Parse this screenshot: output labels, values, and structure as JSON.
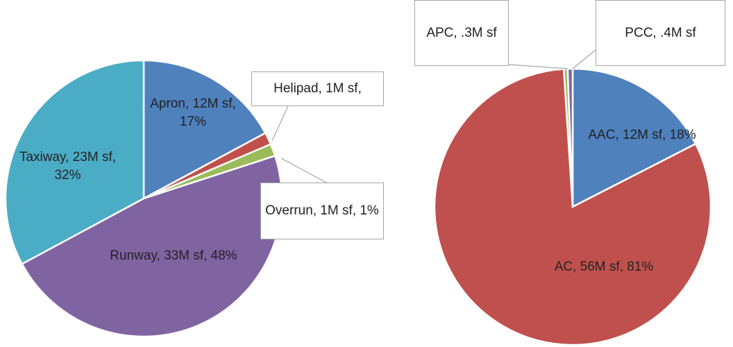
{
  "chart_data": [
    {
      "type": "pie",
      "categories": [
        "Apron",
        "Helipad",
        "Overrun",
        "Runway",
        "Taxiway"
      ],
      "values": [
        12000000,
        1000000,
        1000000,
        33000000,
        23000000
      ],
      "value_labels": [
        "Apron, 12M sf, 17%",
        "Helipad, 1M sf,",
        "Overrun, 1M sf, 1%",
        "Runway, 33M sf, 48%",
        "Taxiway, 23M sf, 32%"
      ],
      "colors": [
        "#4f81bd",
        "#c0504d",
        "#9bbb59",
        "#8064a2",
        "#4bacc6"
      ]
    },
    {
      "type": "pie",
      "categories": [
        "AAC",
        "AC",
        "APC",
        "PCC"
      ],
      "values": [
        12000000,
        56000000,
        300000,
        400000
      ],
      "value_labels": [
        "AAC, 12M sf, 18%",
        "AC, 56M sf, 81%",
        "APC, .3M sf",
        "PCC, .4M sf"
      ],
      "colors": [
        "#4f81bd",
        "#c0504d",
        "#9bbb59",
        "#8064a2"
      ]
    }
  ]
}
